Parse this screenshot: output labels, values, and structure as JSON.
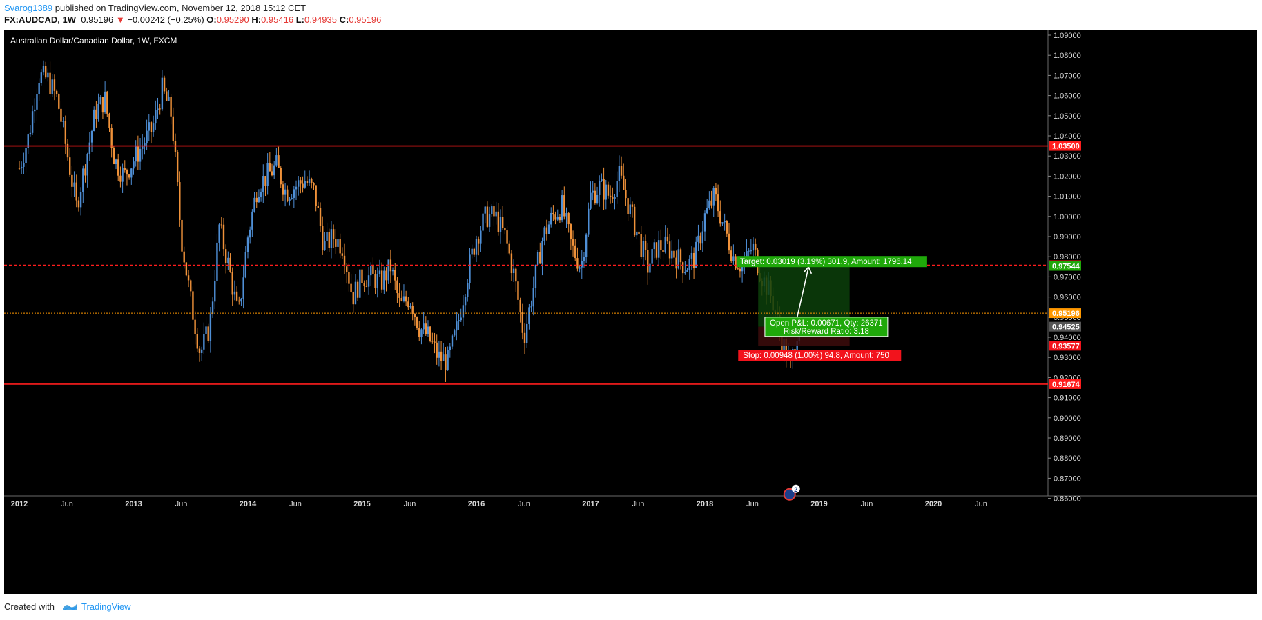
{
  "header": {
    "user": "Svarog1389",
    "published_text": "published on TradingView.com, November 12, 2018 15:12 CET",
    "symbol": "FX:AUDCAD, 1W",
    "last": "0.95196",
    "change_arrow": "▼",
    "change": "−0.00242 (−0.25%)",
    "o_label": "O:",
    "o_value": "0.95290",
    "h_label": "H:",
    "h_value": "0.95416",
    "l_label": "L:",
    "l_value": "0.94935",
    "c_label": "C:",
    "c_value": "0.95196"
  },
  "chart": {
    "title": "Australian Dollar/Canadian Dollar, 1W, FXCM"
  },
  "footer": {
    "created_with": "Created with",
    "brand": "TradingView"
  },
  "colors": {
    "up": "#4f8fd6",
    "down": "#f0923a",
    "red_line": "#ff1d1d",
    "orange_line": "#ff9800",
    "target_green": "#1fa80a",
    "stop_red": "#f2131c",
    "background": "#000000"
  },
  "chart_data": {
    "type": "candlestick",
    "title": "Australian Dollar/Canadian Dollar, 1W, FXCM",
    "ylim": [
      0.855,
      1.092
    ],
    "y_ticks": [
      "1.09000",
      "1.08000",
      "1.07000",
      "1.06000",
      "1.05000",
      "1.04000",
      "1.03000",
      "1.02000",
      "1.01000",
      "1.00000",
      "0.99000",
      "0.98000",
      "0.97000",
      "0.96000",
      "0.95000",
      "0.94000",
      "0.93000",
      "0.92000",
      "0.91000",
      "0.90000",
      "0.89000",
      "0.88000",
      "0.87000",
      "0.86000"
    ],
    "x_ticks": [
      "2012",
      "Jun",
      "2013",
      "Jun",
      "2014",
      "Jun",
      "2015",
      "Jun",
      "2016",
      "Jun",
      "2017",
      "Jun",
      "2018",
      "Jun",
      "2019",
      "Jun",
      "2020",
      "Jun"
    ],
    "price_path": [
      {
        "t": "2012-01",
        "v": 1.024
      },
      {
        "t": "2012-02",
        "v": 1.04
      },
      {
        "t": "2012-03",
        "v": 1.07
      },
      {
        "t": "2012-04",
        "v": 1.068
      },
      {
        "t": "2012-05",
        "v": 1.058
      },
      {
        "t": "2012-06",
        "v": 1.032
      },
      {
        "t": "2012-07",
        "v": 1.005
      },
      {
        "t": "2012-08",
        "v": 1.028
      },
      {
        "t": "2012-09",
        "v": 1.052
      },
      {
        "t": "2012-10",
        "v": 1.058
      },
      {
        "t": "2012-11",
        "v": 1.028
      },
      {
        "t": "2012-12",
        "v": 1.02
      },
      {
        "t": "2013-01",
        "v": 1.028
      },
      {
        "t": "2013-02",
        "v": 1.036
      },
      {
        "t": "2013-03",
        "v": 1.044
      },
      {
        "t": "2013-04",
        "v": 1.063
      },
      {
        "t": "2013-05",
        "v": 1.05
      },
      {
        "t": "2013-06",
        "v": 0.99
      },
      {
        "t": "2013-07",
        "v": 0.958
      },
      {
        "t": "2013-08",
        "v": 0.932
      },
      {
        "t": "2013-09",
        "v": 0.945
      },
      {
        "t": "2013-10",
        "v": 0.995
      },
      {
        "t": "2013-11",
        "v": 0.975
      },
      {
        "t": "2013-12",
        "v": 0.95
      },
      {
        "t": "2014-01",
        "v": 0.99
      },
      {
        "t": "2014-02",
        "v": 1.015
      },
      {
        "t": "2014-03",
        "v": 1.02
      },
      {
        "t": "2014-04",
        "v": 1.025
      },
      {
        "t": "2014-05",
        "v": 1.012
      },
      {
        "t": "2014-06",
        "v": 1.015
      },
      {
        "t": "2014-07",
        "v": 1.018
      },
      {
        "t": "2014-08",
        "v": 1.012
      },
      {
        "t": "2014-09",
        "v": 0.985
      },
      {
        "t": "2014-10",
        "v": 0.99
      },
      {
        "t": "2014-11",
        "v": 0.985
      },
      {
        "t": "2014-12",
        "v": 0.96
      },
      {
        "t": "2015-01",
        "v": 0.97
      },
      {
        "t": "2015-02",
        "v": 0.97
      },
      {
        "t": "2015-03",
        "v": 0.967
      },
      {
        "t": "2015-04",
        "v": 0.975
      },
      {
        "t": "2015-05",
        "v": 0.955
      },
      {
        "t": "2015-06",
        "v": 0.96
      },
      {
        "t": "2015-07",
        "v": 0.945
      },
      {
        "t": "2015-08",
        "v": 0.94
      },
      {
        "t": "2015-09",
        "v": 0.93
      },
      {
        "t": "2015-10",
        "v": 0.928
      },
      {
        "t": "2015-11",
        "v": 0.945
      },
      {
        "t": "2015-12",
        "v": 0.97
      },
      {
        "t": "2016-01",
        "v": 0.99
      },
      {
        "t": "2016-02",
        "v": 1.0
      },
      {
        "t": "2016-03",
        "v": 1.0
      },
      {
        "t": "2016-04",
        "v": 0.99
      },
      {
        "t": "2016-05",
        "v": 0.97
      },
      {
        "t": "2016-06",
        "v": 0.94
      },
      {
        "t": "2016-07",
        "v": 0.965
      },
      {
        "t": "2016-08",
        "v": 0.99
      },
      {
        "t": "2016-09",
        "v": 1.0
      },
      {
        "t": "2016-10",
        "v": 1.005
      },
      {
        "t": "2016-11",
        "v": 0.985
      },
      {
        "t": "2016-12",
        "v": 0.975
      },
      {
        "t": "2017-01",
        "v": 1.01
      },
      {
        "t": "2017-02",
        "v": 1.015
      },
      {
        "t": "2017-03",
        "v": 1.01
      },
      {
        "t": "2017-04",
        "v": 1.02
      },
      {
        "t": "2017-05",
        "v": 1.005
      },
      {
        "t": "2017-06",
        "v": 0.99
      },
      {
        "t": "2017-07",
        "v": 0.975
      },
      {
        "t": "2017-08",
        "v": 0.985
      },
      {
        "t": "2017-09",
        "v": 0.985
      },
      {
        "t": "2017-10",
        "v": 0.98
      },
      {
        "t": "2017-11",
        "v": 0.975
      },
      {
        "t": "2017-12",
        "v": 0.98
      },
      {
        "t": "2018-01",
        "v": 1.0
      },
      {
        "t": "2018-02",
        "v": 1.01
      },
      {
        "t": "2018-03",
        "v": 0.995
      },
      {
        "t": "2018-04",
        "v": 0.98
      },
      {
        "t": "2018-05",
        "v": 0.975
      },
      {
        "t": "2018-06",
        "v": 0.985
      },
      {
        "t": "2018-07",
        "v": 0.97
      },
      {
        "t": "2018-08",
        "v": 0.96
      },
      {
        "t": "2018-09",
        "v": 0.94
      },
      {
        "t": "2018-10",
        "v": 0.925
      },
      {
        "t": "2018-11",
        "v": 0.952
      }
    ],
    "horizontal_lines": [
      {
        "price": 1.035,
        "label": "1.03500",
        "style": "solid",
        "color": "#ff1d1d"
      },
      {
        "price": 0.97579,
        "label": "0.97579",
        "style": "dashed",
        "color": "#ff1d1d"
      },
      {
        "price": 0.95196,
        "label": "0.95196",
        "style": "dotted",
        "color": "#ff9800"
      },
      {
        "price": 0.91674,
        "label": "0.91674",
        "style": "solid",
        "color": "#ff1d1d"
      }
    ],
    "price_labels": [
      {
        "price": 0.97544,
        "label": "0.97544",
        "color": "#1fa80a"
      },
      {
        "price": 0.94525,
        "label": "0.94525",
        "color": "#555555"
      },
      {
        "price": 0.93577,
        "label": "0.93577",
        "color": "#f2131c"
      }
    ],
    "long_position": {
      "entry": 0.94525,
      "target_price": 0.97544,
      "stop_price": 0.93577,
      "target_text": "Target: 0.03019 (3.19%) 301.9, Amount: 1796.14",
      "stop_text": "Stop: 0.00948 (1.00%) 94.8, Amount: 750",
      "pnl_text": "Open P&L: 0.00671, Qty: 26371",
      "ratio_text": "Risk/Reward Ratio: 3.18"
    },
    "event_badge": "2"
  }
}
